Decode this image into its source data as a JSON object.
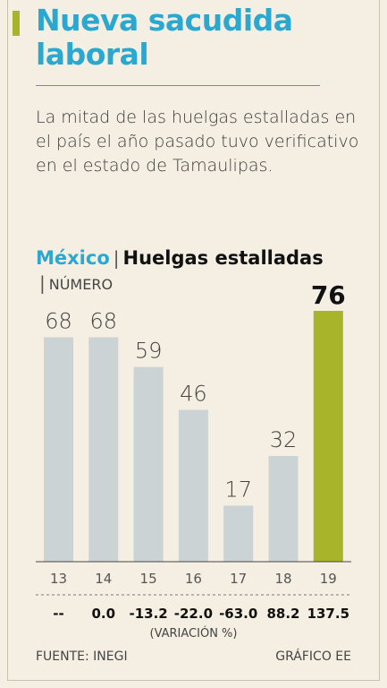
{
  "header": {
    "title": "Nueva sacudida laboral",
    "subtitle": "La mitad de las huelgas estalladas en el país el año pasado tuvo verificativo en el estado de Tamaulipas."
  },
  "chart_header": {
    "country": "México",
    "separator": "|",
    "title": "Huelgas estalladas",
    "unit": "NÚMERO"
  },
  "chart_data": {
    "type": "bar",
    "categories": [
      "13",
      "14",
      "15",
      "16",
      "17",
      "18",
      "19"
    ],
    "values": [
      68,
      68,
      59,
      46,
      17,
      32,
      76
    ],
    "variation": [
      "--",
      "0.0",
      "-13.2",
      "-22.0",
      "-63.0",
      "88.2",
      "137.5"
    ],
    "variation_label": "(VARIACIÓN %)",
    "highlight_index": 6,
    "ylim": [
      0,
      76
    ],
    "colors": {
      "bar": "#ccd3d4",
      "highlight": "#a8b52a"
    }
  },
  "footer": {
    "source": "FUENTE: INEGI",
    "credit": "GRÁFICO EE"
  }
}
